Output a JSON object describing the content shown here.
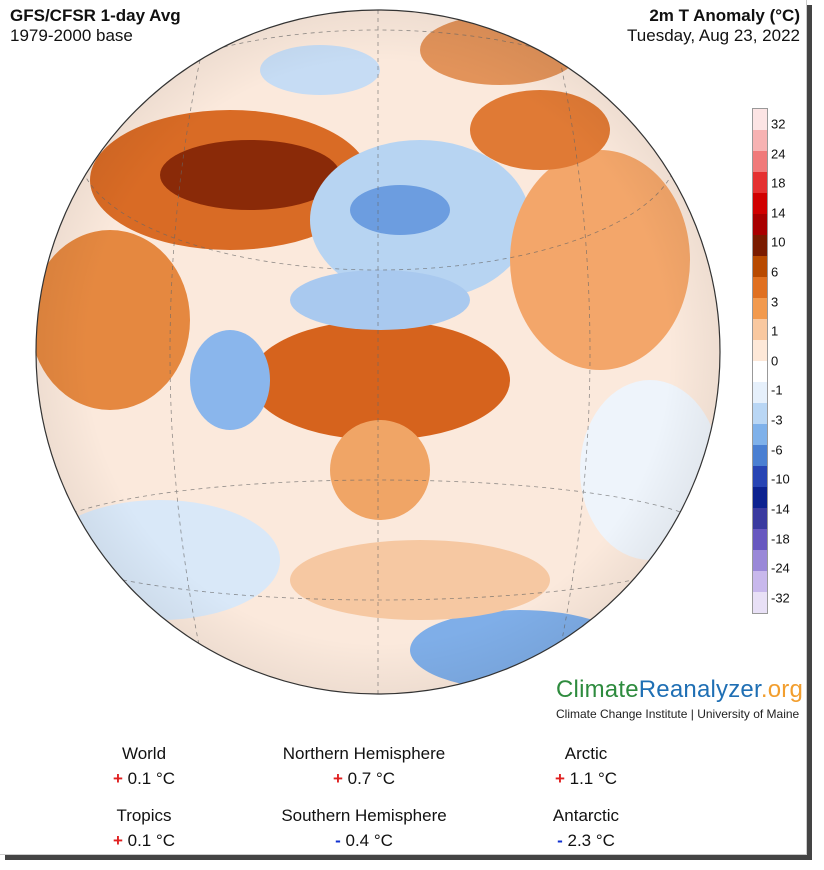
{
  "header": {
    "title": "GFS/CFSR 1-day Avg",
    "base": "1979-2000 base",
    "variable": "2m T Anomaly (°C)",
    "date": "Tuesday, Aug 23, 2022"
  },
  "colorbar": {
    "ticks": [
      "32",
      "24",
      "18",
      "14",
      "10",
      "6",
      "3",
      "1",
      "0",
      "-1",
      "-3",
      "-6",
      "-10",
      "-14",
      "-18",
      "-24",
      "-32"
    ],
    "colors": [
      "#fce4e4",
      "#f7b3b3",
      "#f07a7a",
      "#e53030",
      "#d00000",
      "#a80000",
      "#7a1b00",
      "#b84a00",
      "#e07020",
      "#f29a4e",
      "#f8c8a0",
      "#fde8d8",
      "#ffffff",
      "#e6f0fb",
      "#b9d6f4",
      "#7fb1ea",
      "#4a7fd2",
      "#2744b4",
      "#0c2290",
      "#3a3aa0",
      "#6858c0",
      "#9a88d8",
      "#c8b8ec",
      "#e8e0f6"
    ]
  },
  "brand": {
    "climate": "Climate",
    "reanalyzer": "Reanalyzer",
    "org": ".org",
    "subtitle": "Climate Change Institute | University of Maine"
  },
  "stats": [
    {
      "label": "World",
      "sign": "+",
      "value": "0.1 °C"
    },
    {
      "label": "Northern Hemisphere",
      "sign": "+",
      "value": "0.7 °C"
    },
    {
      "label": "Arctic",
      "sign": "+",
      "value": "1.1 °C"
    },
    {
      "label": "Tropics",
      "sign": "+",
      "value": "0.1 °C"
    },
    {
      "label": "Southern Hemisphere",
      "sign": "-",
      "value": "0.4 °C"
    },
    {
      "label": "Antarctic",
      "sign": "-",
      "value": "2.3 °C"
    }
  ]
}
